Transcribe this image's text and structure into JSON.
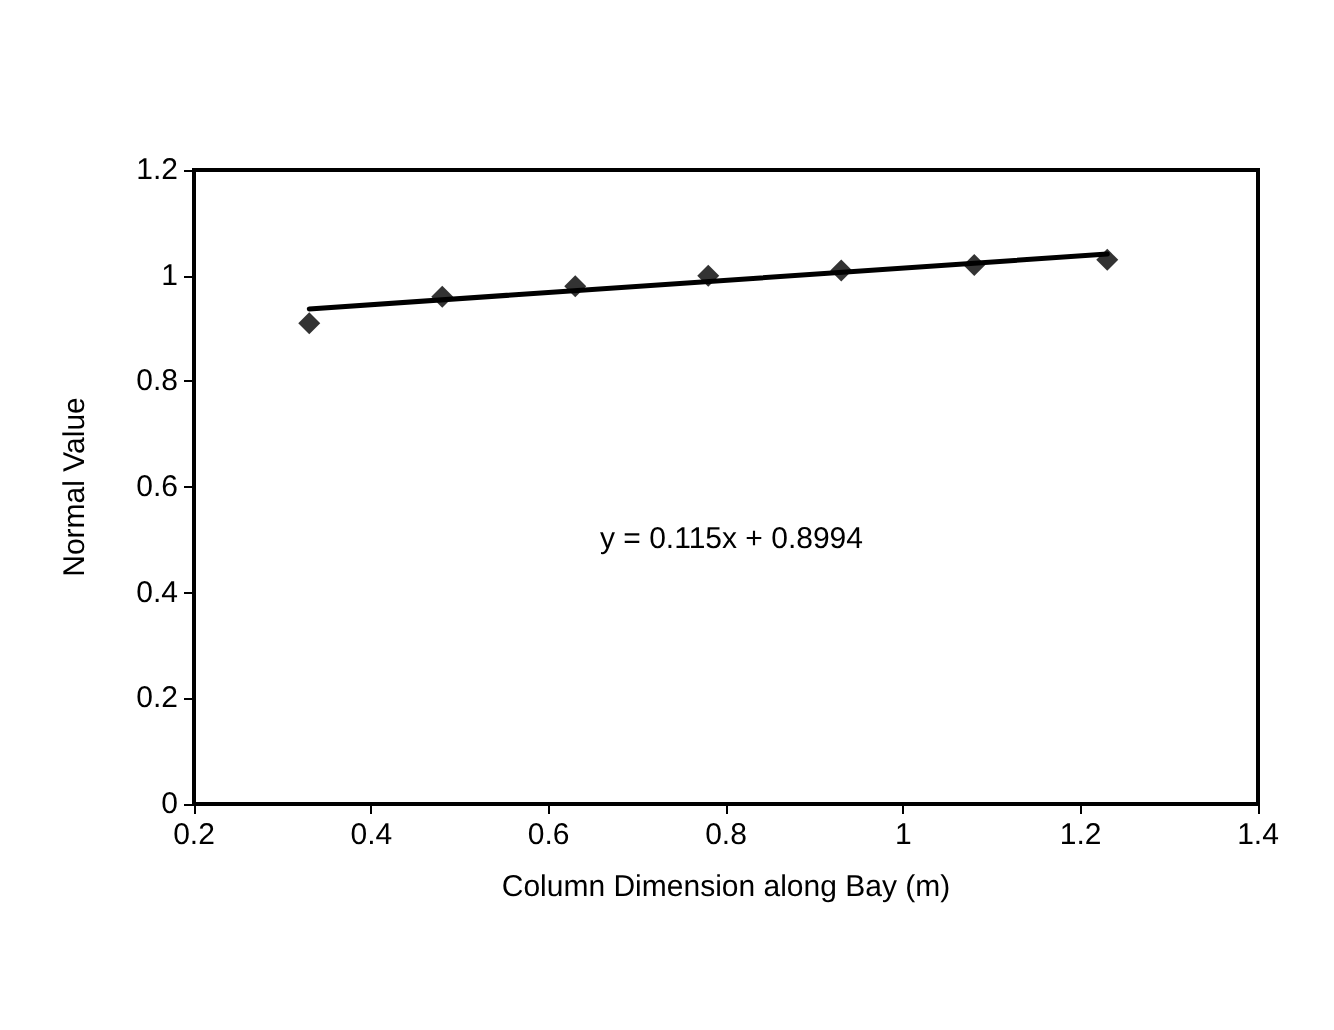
{
  "chart_data": {
    "type": "scatter",
    "xlabel": "Column Dimension along Bay (m)",
    "ylabel": "Normal Value",
    "x": [
      0.33,
      0.48,
      0.63,
      0.78,
      0.93,
      1.08,
      1.23
    ],
    "series": [
      {
        "color": "#000000",
        "marker": "diamond",
        "values": [
          0.91,
          0.96,
          0.98,
          1.0,
          1.01,
          1.02,
          1.03
        ]
      },
      {
        "type": "line",
        "color": "#000000",
        "marker": "none",
        "line_style": "solid",
        "x": [
          0.33,
          1.23
        ],
        "values": [
          0.937,
          1.041
        ]
      }
    ],
    "annotations": [
      "y = 0.115x + 0.8994"
    ],
    "xlim": [
      0.2,
      1.4
    ],
    "xticks": [
      0.2,
      0.4,
      0.6,
      0.8,
      1,
      1.2,
      1.4
    ],
    "ylim": [
      0,
      1.2
    ],
    "yticks": [
      0,
      0.2,
      0.4,
      0.6,
      0.8,
      1,
      1.2
    ],
    "grid": false
  }
}
